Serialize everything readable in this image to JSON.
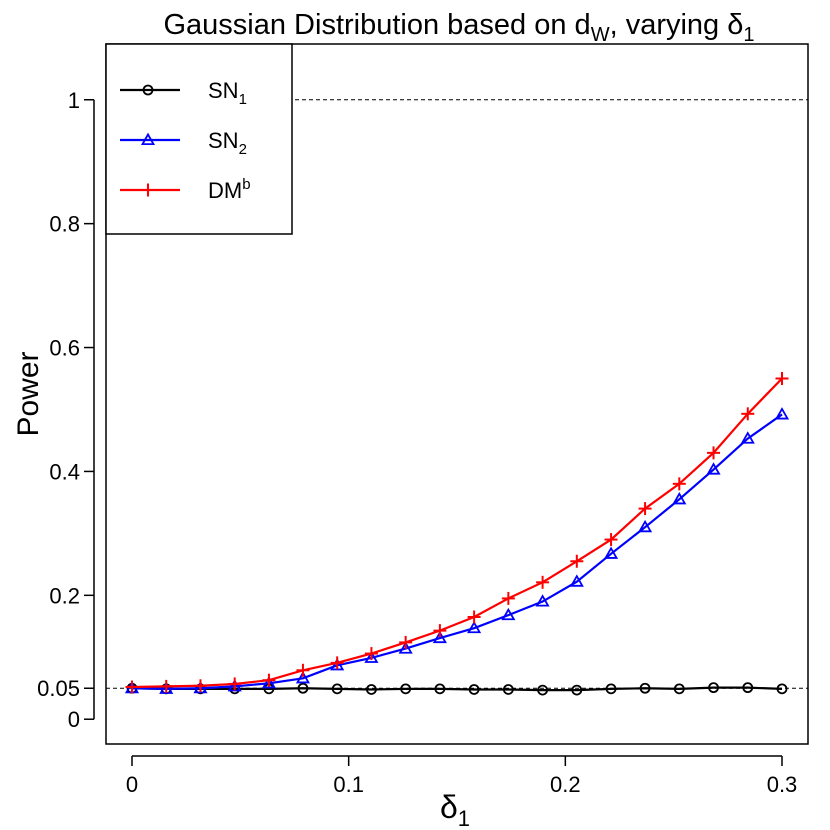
{
  "chart_data": {
    "type": "line",
    "title": "Gaussian Distribution based on d",
    "title_subscript": "W",
    "title_suffix": ", varying δ",
    "title_suffix_subscript": "1",
    "xlabel": "δ",
    "xlabel_subscript": "1",
    "ylabel": "Power",
    "xlim": [
      -0.012,
      0.312
    ],
    "ylim": [
      -0.04,
      1.09
    ],
    "x_ticks": [
      0,
      0.1,
      0.2,
      0.3
    ],
    "x_tick_labels": [
      "0",
      "0.1",
      "0.2",
      "0.3"
    ],
    "y_ticks": [
      0,
      0.05,
      0.2,
      0.4,
      0.6,
      0.8,
      1
    ],
    "y_tick_labels": [
      "0",
      "0.05",
      "0.2",
      "0.4",
      "0.6",
      "0.8",
      "1"
    ],
    "reference_lines": [
      0.05,
      1
    ],
    "legend_position": "top-left",
    "x": [
      0,
      0.0158,
      0.0316,
      0.0474,
      0.0632,
      0.0789,
      0.0947,
      0.1105,
      0.1263,
      0.1421,
      0.1579,
      0.1737,
      0.1895,
      0.2053,
      0.2211,
      0.2368,
      0.2526,
      0.2684,
      0.2842,
      0.3
    ],
    "series": [
      {
        "name": "SN",
        "name_sub": "1",
        "name_sup": "",
        "color": "#000000",
        "marker": "circle",
        "values": [
          0.05,
          0.049,
          0.049,
          0.049,
          0.049,
          0.05,
          0.049,
          0.048,
          0.049,
          0.049,
          0.048,
          0.048,
          0.047,
          0.047,
          0.049,
          0.05,
          0.049,
          0.051,
          0.051,
          0.049
        ]
      },
      {
        "name": "SN",
        "name_sub": "2",
        "name_sup": "",
        "color": "#0000ff",
        "marker": "triangle",
        "values": [
          0.05,
          0.049,
          0.05,
          0.053,
          0.058,
          0.066,
          0.087,
          0.099,
          0.114,
          0.131,
          0.147,
          0.168,
          0.19,
          0.222,
          0.267,
          0.31,
          0.355,
          0.403,
          0.453,
          0.492
        ]
      },
      {
        "name": "DM",
        "name_sub": "",
        "name_sup": "b",
        "color": "#ff0000",
        "marker": "plus",
        "values": [
          0.052,
          0.053,
          0.054,
          0.057,
          0.063,
          0.079,
          0.091,
          0.106,
          0.124,
          0.143,
          0.165,
          0.195,
          0.221,
          0.255,
          0.29,
          0.34,
          0.38,
          0.43,
          0.493,
          0.55
        ]
      }
    ]
  }
}
